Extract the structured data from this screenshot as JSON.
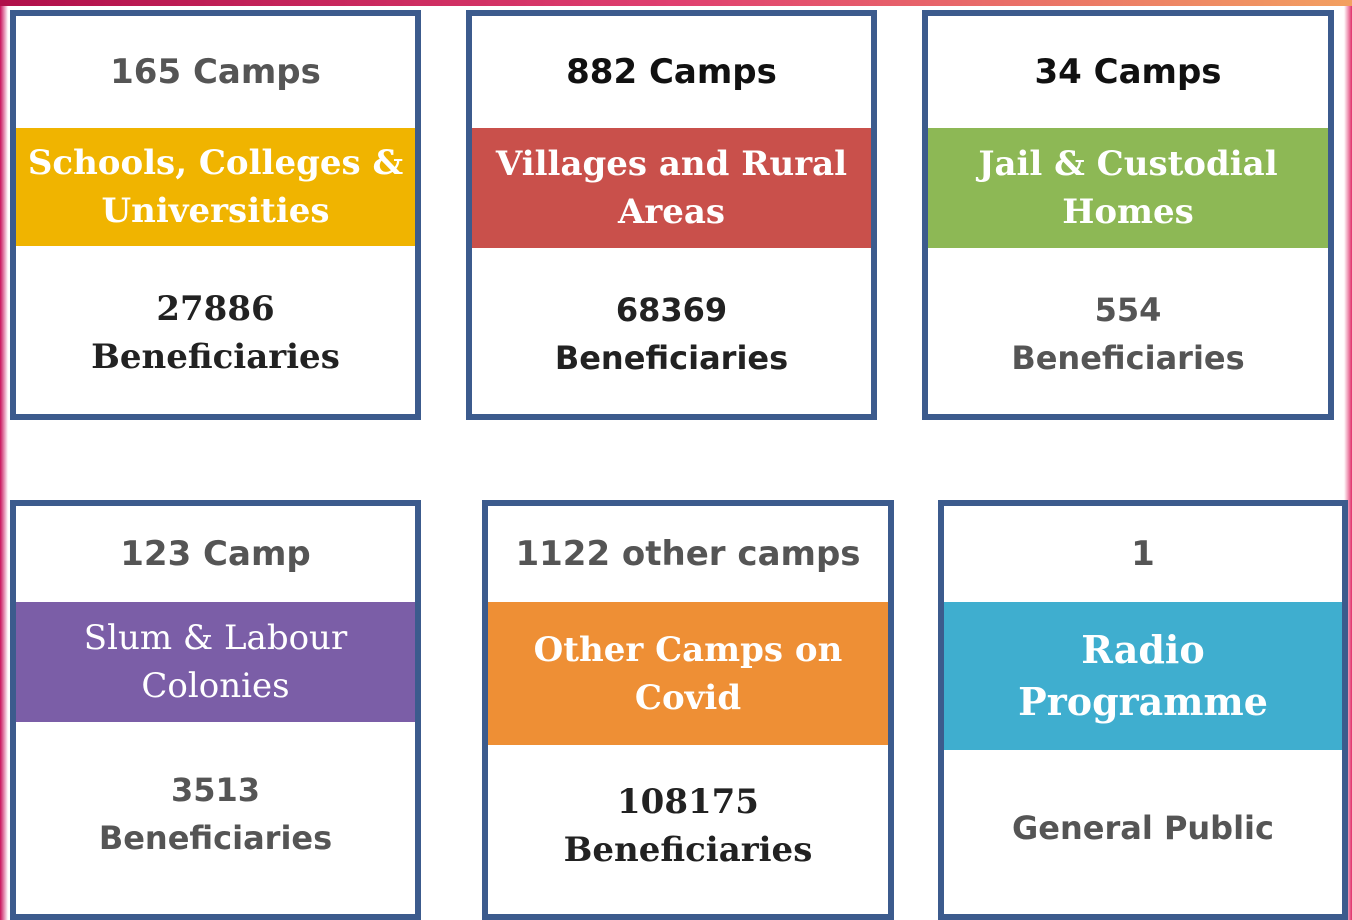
{
  "cards": [
    {
      "top": "165 Camps",
      "band": [
        "Schools, Colleges &",
        "Universities"
      ],
      "bottom": [
        "27886",
        "Beneficiaries"
      ]
    },
    {
      "top": "882 Camps",
      "band": [
        "Villages and Rural",
        "Areas"
      ],
      "bottom": [
        "68369",
        "Beneficiaries"
      ]
    },
    {
      "top": "34 Camps",
      "band": [
        "Jail & Custodial",
        "Homes"
      ],
      "bottom": [
        "554",
        "Beneficiaries"
      ]
    },
    {
      "top": "123 Camp",
      "band": [
        "Slum & Labour",
        "Colonies"
      ],
      "bottom": [
        "3513",
        "Beneficiaries"
      ]
    },
    {
      "top": "1122 other camps",
      "band": [
        "Other Camps on",
        "Covid"
      ],
      "bottom": [
        "108175",
        "Beneficiaries"
      ]
    },
    {
      "top": "1",
      "band": [
        "Radio",
        "Programme"
      ],
      "bottom": [
        "General Public"
      ]
    }
  ]
}
